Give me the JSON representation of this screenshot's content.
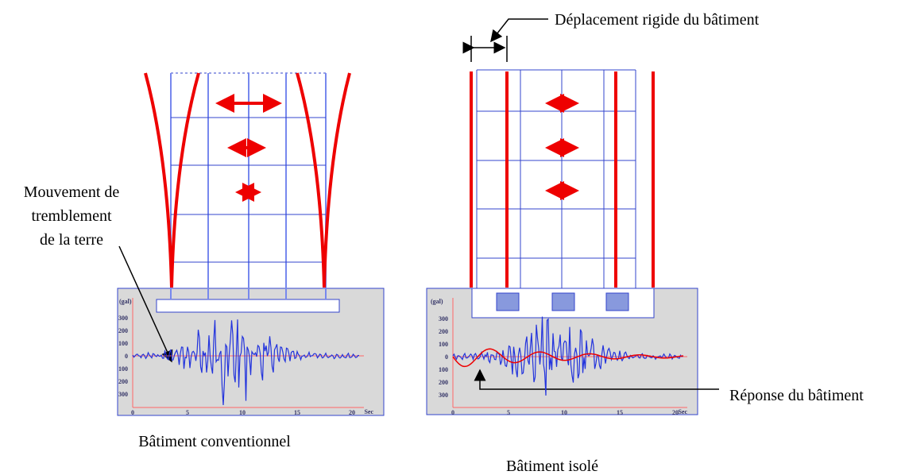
{
  "labels": {
    "rigid_displacement": "Déplacement rigide du bâtiment",
    "ground_motion": [
      "Mouvement de",
      "tremblement",
      "de la terre"
    ],
    "response": "Réponse du bâtiment",
    "conventional": "Bâtiment conventionnel",
    "isolated": "Bâtiment isolé"
  },
  "plots": [
    {
      "unit": "(gal)",
      "y_labels": [
        "300",
        "200",
        "100",
        "0",
        "100",
        "200",
        "300"
      ],
      "x_labels": [
        "0",
        "5",
        "10",
        "15",
        "20"
      ],
      "x_unit": "Sec"
    },
    {
      "unit": "(gal)",
      "y_labels": [
        "300",
        "200",
        "100",
        "0",
        "100",
        "200",
        "300"
      ],
      "x_labels": [
        "0",
        "5",
        "10",
        "15",
        "20"
      ],
      "x_unit": "Sec"
    }
  ]
}
